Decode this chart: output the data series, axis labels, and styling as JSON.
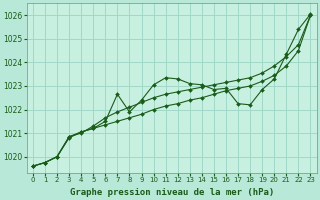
{
  "title": "Graphe pression niveau de la mer (hPa)",
  "bg_color": "#b8e8d8",
  "plot_bg_color": "#c8f0e0",
  "grid_color": "#a0d8c8",
  "line_color": "#1a5c1a",
  "xlim": [
    -0.5,
    23.5
  ],
  "ylim": [
    1019.3,
    1026.5
  ],
  "xticks": [
    0,
    1,
    2,
    3,
    4,
    5,
    6,
    7,
    8,
    9,
    10,
    11,
    12,
    13,
    14,
    15,
    16,
    17,
    18,
    19,
    20,
    21,
    22,
    23
  ],
  "yticks": [
    1020,
    1021,
    1022,
    1023,
    1024,
    1025,
    1026
  ],
  "series1": [
    1019.6,
    1019.75,
    1020.0,
    1020.8,
    1021.05,
    1021.2,
    1021.5,
    1022.65,
    1021.9,
    1022.4,
    1023.05,
    1023.35,
    1023.3,
    1023.1,
    1023.05,
    1022.85,
    1022.9,
    1022.25,
    1022.2,
    1022.85,
    1023.3,
    1024.35,
    1025.4,
    1026.05
  ],
  "series2": [
    1019.6,
    1019.75,
    1020.0,
    1020.85,
    1021.0,
    1021.3,
    1021.65,
    1021.9,
    1022.1,
    1022.3,
    1022.5,
    1022.65,
    1022.75,
    1022.85,
    1022.95,
    1023.05,
    1023.15,
    1023.25,
    1023.35,
    1023.55,
    1023.85,
    1024.25,
    1024.75,
    1026.0
  ],
  "series3": [
    1019.6,
    1019.75,
    1020.0,
    1020.85,
    1021.05,
    1021.2,
    1021.35,
    1021.5,
    1021.65,
    1021.8,
    1022.0,
    1022.15,
    1022.25,
    1022.4,
    1022.5,
    1022.65,
    1022.8,
    1022.9,
    1023.0,
    1023.2,
    1023.45,
    1023.85,
    1024.5,
    1026.0
  ]
}
